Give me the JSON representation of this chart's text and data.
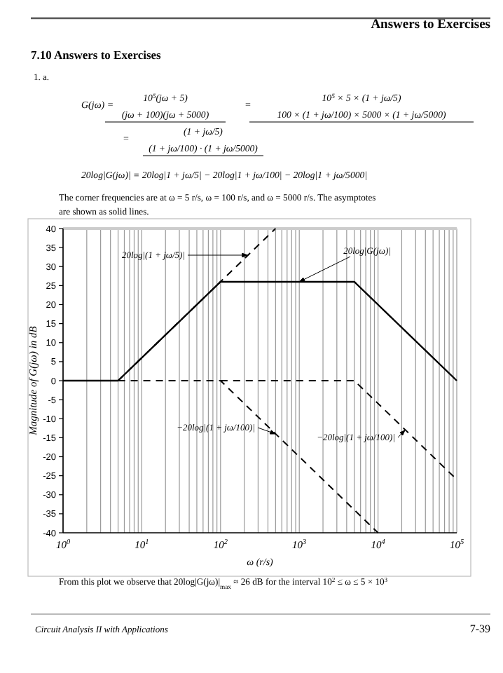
{
  "chart_data": {
    "type": "line",
    "title": "7.10 Answers to Exercises",
    "xlabel": "ω (r/s)",
    "ylabel": "Magnitude of G(jω) in dB",
    "log": "x",
    "grid": "x",
    "marker": "none",
    "xlim": [
      1,
      100000
    ],
    "ylim": [
      -40,
      40
    ],
    "xticks": [
      {
        "value": 1,
        "label": "10$^{0}$"
      },
      {
        "value": 2,
        "label": null
      },
      {
        "value": 3,
        "label": null
      },
      {
        "value": 4,
        "label": null
      },
      {
        "value": 5,
        "label": null
      },
      {
        "value": 6,
        "label": null
      },
      {
        "value": 7,
        "label": null
      },
      {
        "value": 8,
        "label": null
      },
      {
        "value": 9,
        "label": null
      },
      {
        "value": 10,
        "label": "10$^{1}$"
      },
      {
        "value": 20,
        "label": null
      },
      {
        "value": 30,
        "label": null
      },
      {
        "value": 40,
        "label": null
      },
      {
        "value": 50,
        "label": null
      },
      {
        "value": 60,
        "label": null
      },
      {
        "value": 70,
        "label": null
      },
      {
        "value": 80,
        "label": null
      },
      {
        "value": 90,
        "label": null
      },
      {
        "value": 100,
        "label": "10$^{2}$"
      },
      {
        "value": 200,
        "label": null
      },
      {
        "value": 300,
        "label": null
      },
      {
        "value": 400,
        "label": null
      },
      {
        "value": 500,
        "label": null
      },
      {
        "value": 600,
        "label": null
      },
      {
        "value": 700,
        "label": null
      },
      {
        "value": 800,
        "label": null
      },
      {
        "value": 900,
        "label": null
      },
      {
        "value": 1000,
        "label": "10$^{3}$"
      },
      {
        "value": 2000,
        "label": null
      },
      {
        "value": 3000,
        "label": null
      },
      {
        "value": 4000,
        "label": null
      },
      {
        "value": 5000,
        "label": null
      },
      {
        "value": 6000,
        "label": null
      },
      {
        "value": 7000,
        "label": null
      },
      {
        "value": 8000,
        "label": null
      },
      {
        "value": 9000,
        "label": null
      },
      {
        "value": 10000,
        "label": "10$^{4}$"
      },
      {
        "value": 20000,
        "label": null
      },
      {
        "value": 30000,
        "label": null
      },
      {
        "value": 40000,
        "label": null
      },
      {
        "value": 50000,
        "label": null
      },
      {
        "value": 60000,
        "label": null
      },
      {
        "value": 70000,
        "label": null
      },
      {
        "value": 80000,
        "label": null
      },
      {
        "value": 90000,
        "label": null
      },
      {
        "value": 100000,
        "label": "10$^{5}$"
      }
    ],
    "yticks": [
      -40,
      -35,
      -30,
      -25,
      -20,
      -15,
      -10,
      -5,
      0,
      5,
      10,
      15,
      20,
      25,
      30,
      35,
      40
    ],
    "series": [
      {
        "color": "#000000",
        "line_style": "solid",
        "x": [
          1,
          5,
          100,
          5000,
          100000
        ],
        "values": [
          0,
          0,
          26,
          26,
          0
        ]
      },
      {
        "color": "#000000",
        "line_style": "dashed",
        "x": [
          5,
          500
        ],
        "values": [
          0,
          40
        ]
      },
      {
        "color": "#000000",
        "line_style": "dashed",
        "x": [
          5,
          100,
          10000
        ],
        "values": [
          0,
          0,
          -40
        ]
      },
      {
        "color": "#000000",
        "line_style": "dashed",
        "x": [
          100,
          5000,
          100000
        ],
        "values": [
          0,
          0,
          -26
        ]
      }
    ],
    "annotations": [
      "Answers to Exercises",
      "1. a.",
      "G(jω) =",
      "10$^{5}$(jω + 5)",
      "(jω + 100)(jω + 5000)",
      "=",
      "10$^{5}$ × 5 × (1 + jω/5)",
      "100 × (1 + jω/100) × 5000 × (1 + jω/5000)",
      "=",
      "(1 + jω/5)",
      "(1 + jω/100) · (1 + jω/5000)",
      "20log|G(jω)| = 20log|1 + jω/5| − 20log|1 + jω/100| − 20log|1 + jω/5000|",
      "The corner frequencies are at ω = 5 r/s, ω = 100 r/s, and ω = 5000 r/s. The asymptotes",
      "are shown as solid lines.",
      "From this plot we observe that 20log|G(jω)|$_{max}$ ≈ 26 dB for the interval 10$^{2}$ ≤ ω ≤ 5 × 10$^{3}$",
      "Circuit Analysis II with Applications",
      "7-39",
      {
        "text": "20log|G(jω)|",
        "x": 1000,
        "y": 26
      },
      {
        "text": "20log|(1 + jω/5)|",
        "x": 220,
        "y": 33
      },
      {
        "text": "−20log|(1 + jω/100)|",
        "x": 500,
        "y": -14
      },
      {
        "text": "−20log|(1 + jω/100)|",
        "x": 22000,
        "y": -13
      }
    ]
  }
}
